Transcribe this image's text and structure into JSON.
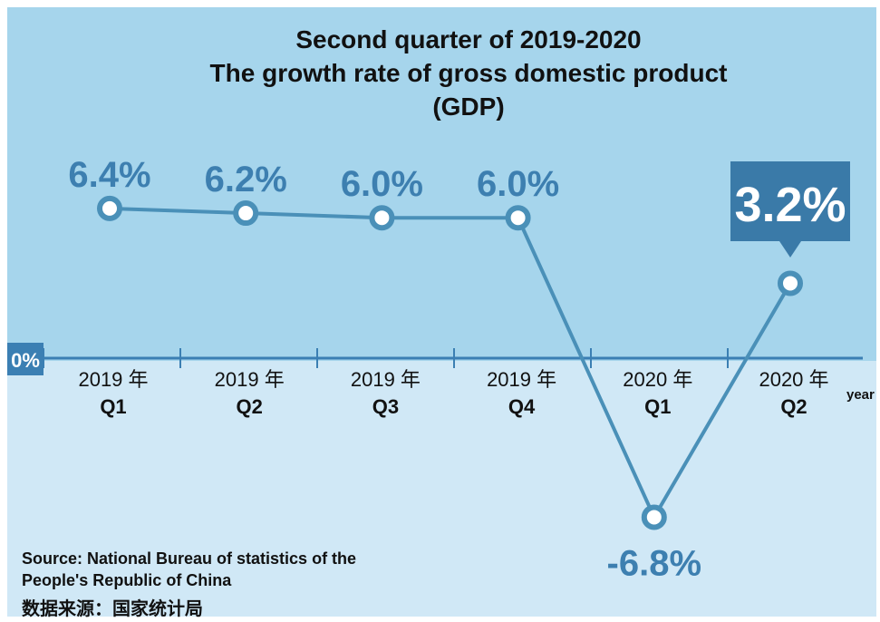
{
  "chart_data": {
    "type": "line",
    "title_lines": [
      "Second quarter of 2019-2020",
      "The growth rate of gross domestic product",
      "(GDP)"
    ],
    "categories": [
      {
        "year": "2019 年",
        "quarter": "Q1"
      },
      {
        "year": "2019 年",
        "quarter": "Q2"
      },
      {
        "year": "2019 年",
        "quarter": "Q3"
      },
      {
        "year": "2019 年",
        "quarter": "Q4"
      },
      {
        "year": "2020 年",
        "quarter": "Q1"
      },
      {
        "year": "2020 年",
        "quarter": "Q2"
      }
    ],
    "values": [
      6.4,
      6.2,
      6.0,
      6.0,
      -6.8,
      3.2
    ],
    "data_labels": [
      "6.4%",
      "6.2%",
      "6.0%",
      "6.0%",
      "-6.8%",
      "3.2%"
    ],
    "highlighted_index": 5,
    "zero_label": "0%",
    "xlabel": "year",
    "ylim": [
      -9,
      12
    ],
    "grid": false,
    "legend": "none",
    "source_lines": [
      "Source: National Bureau of statistics of the",
      "People's Republic of China",
      "数据来源：国家统计局"
    ]
  },
  "colors": {
    "upper_background": "#a6d5ec",
    "lower_background": "#d0e8f6",
    "line": "#4a90b8",
    "value_label": "#3d7fb0",
    "axis": "#3b7fb3",
    "highlight_box": "#3a7aa8",
    "text": "#111111"
  }
}
